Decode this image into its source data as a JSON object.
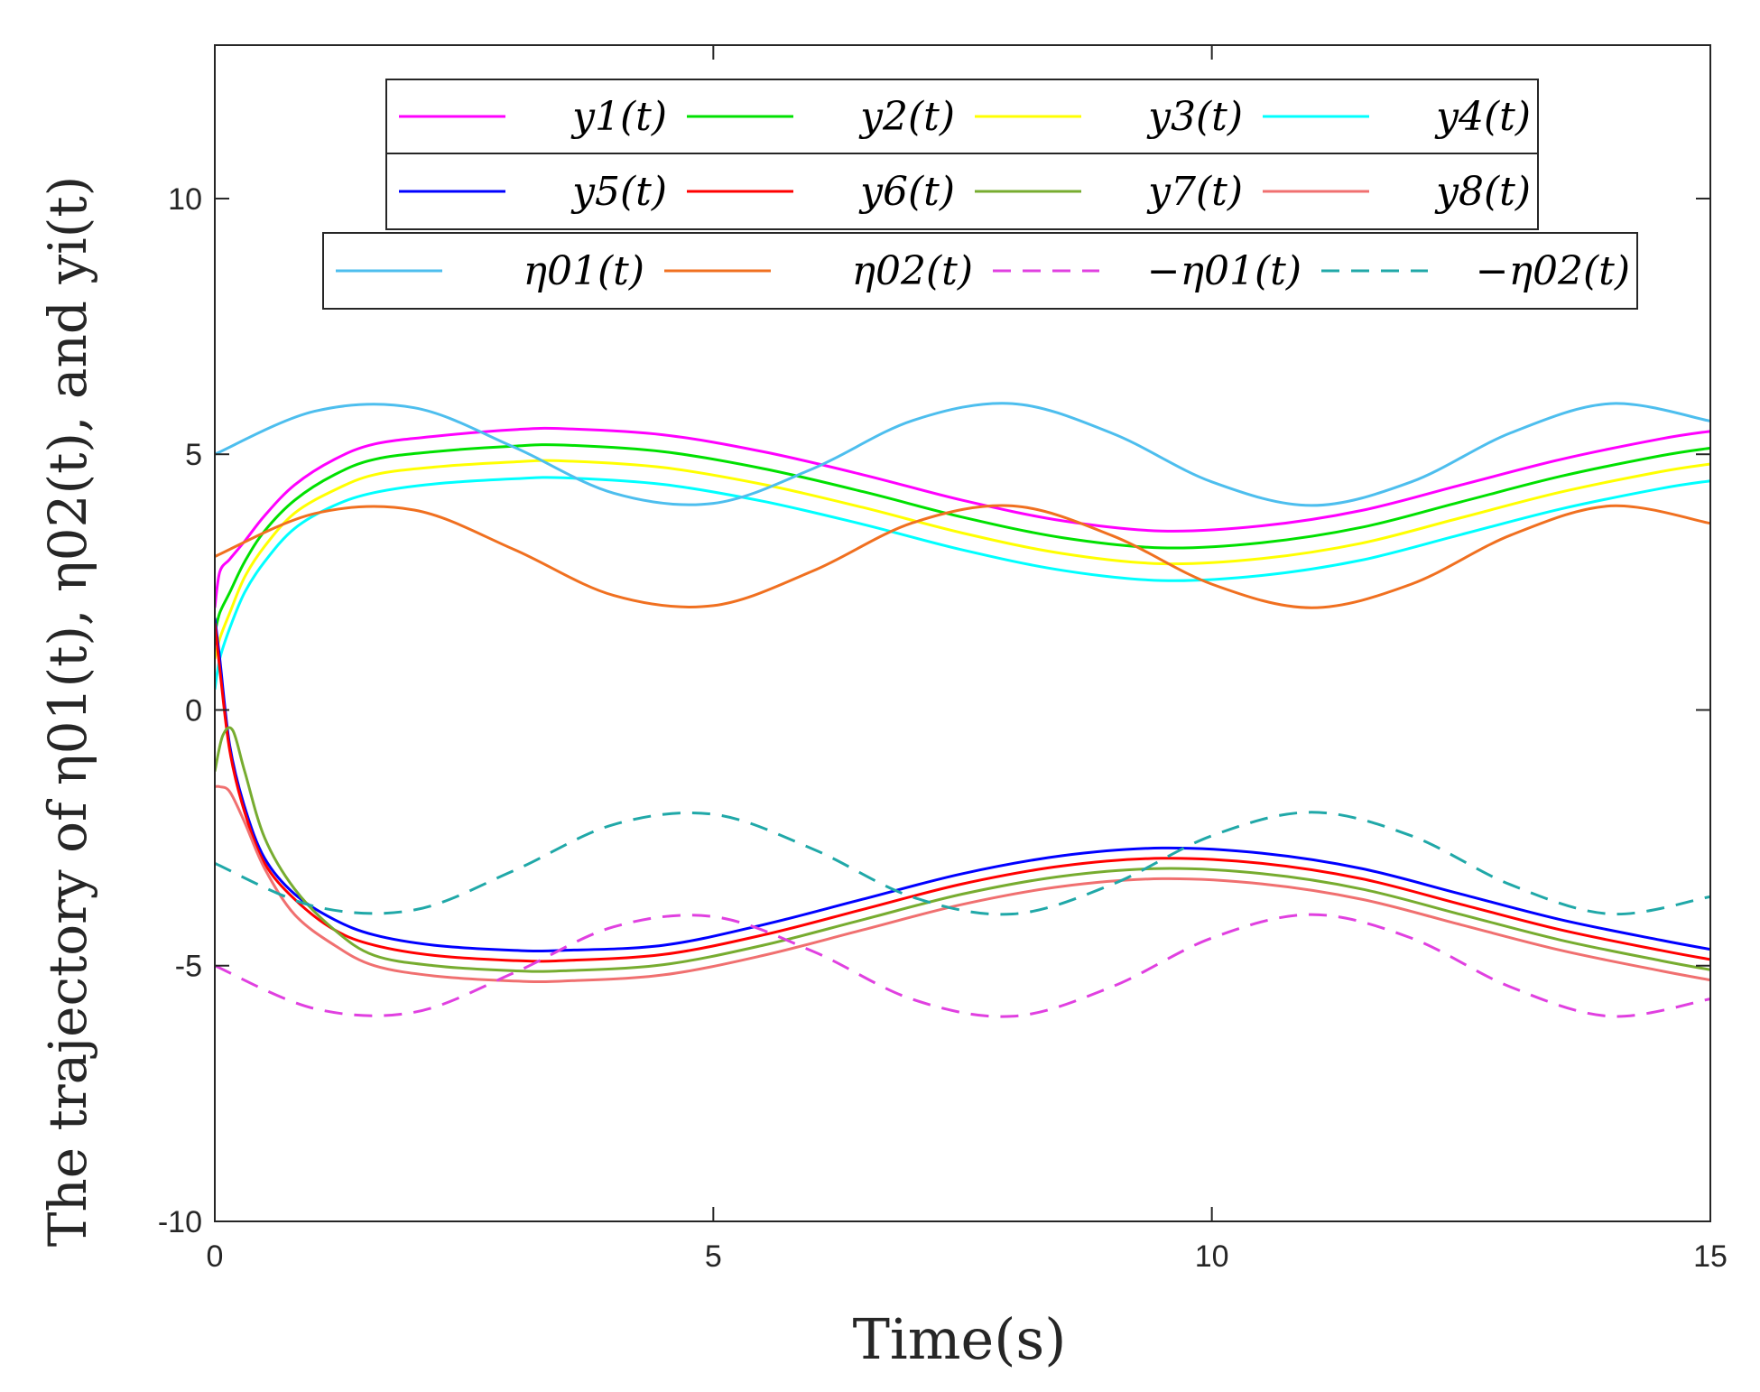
{
  "chart_data": {
    "type": "line",
    "xlabel": "Time(s)",
    "ylabel": "The trajectory of η01(t), η02(t), and yi(t)",
    "xlim": [
      0,
      15
    ],
    "ylim": [
      -10,
      13
    ],
    "xticks": [
      0,
      5,
      10,
      15
    ],
    "xtick_labels": [
      "0",
      "5",
      "10",
      "15"
    ],
    "yticks": [
      -10,
      -5,
      0,
      5,
      10
    ],
    "ytick_labels": [
      "-10",
      "-5",
      "0",
      "5",
      "10"
    ],
    "grid": false,
    "legend_rows": [
      [
        "y1",
        "y2",
        "y3",
        "y4"
      ],
      [
        "y5",
        "y6",
        "y7",
        "y8"
      ],
      [
        "eta01",
        "eta02",
        "neg_eta01",
        "neg_eta02"
      ]
    ],
    "series": [
      {
        "id": "y1",
        "name": "y1(t)",
        "color": "#ff00ff",
        "dash": "solid",
        "x": [
          0,
          0.05,
          0.15,
          0.3,
          0.5,
          0.8,
          1.2,
          1.6,
          2.2,
          3.0,
          3.5,
          4.5,
          5.5,
          6.5,
          7.5,
          8.5,
          9.5,
          10.5,
          11.5,
          12.5,
          13.5,
          14.5,
          15
        ],
        "y": [
          2.0,
          2.7,
          2.95,
          3.3,
          3.8,
          4.4,
          4.9,
          5.2,
          5.35,
          5.48,
          5.5,
          5.38,
          5.05,
          4.6,
          4.1,
          3.7,
          3.5,
          3.6,
          3.9,
          4.4,
          4.9,
          5.3,
          5.45
        ]
      },
      {
        "id": "y2",
        "name": "y2(t)",
        "color": "#00e000",
        "dash": "solid",
        "x": [
          0,
          0.05,
          0.15,
          0.3,
          0.5,
          0.8,
          1.2,
          1.6,
          2.2,
          3.0,
          3.5,
          4.5,
          5.5,
          6.5,
          7.5,
          8.5,
          9.5,
          10.5,
          11.5,
          12.5,
          13.5,
          14.5,
          15
        ],
        "y": [
          1.5,
          1.9,
          2.3,
          2.9,
          3.5,
          4.1,
          4.6,
          4.9,
          5.05,
          5.16,
          5.18,
          5.05,
          4.72,
          4.27,
          3.77,
          3.37,
          3.17,
          3.27,
          3.57,
          4.07,
          4.57,
          4.97,
          5.12
        ]
      },
      {
        "id": "y3",
        "name": "y3(t)",
        "color": "#ffff00",
        "dash": "solid",
        "x": [
          0,
          0.05,
          0.15,
          0.3,
          0.5,
          0.8,
          1.2,
          1.6,
          2.2,
          3.0,
          3.5,
          4.5,
          5.5,
          6.5,
          7.5,
          8.5,
          9.5,
          10.5,
          11.5,
          12.5,
          13.5,
          14.5,
          15
        ],
        "y": [
          1.0,
          1.4,
          1.9,
          2.6,
          3.2,
          3.85,
          4.3,
          4.6,
          4.75,
          4.85,
          4.87,
          4.74,
          4.41,
          3.96,
          3.46,
          3.06,
          2.86,
          2.96,
          3.26,
          3.76,
          4.26,
          4.66,
          4.81
        ]
      },
      {
        "id": "y4",
        "name": "y4(t)",
        "color": "#00ffff",
        "dash": "solid",
        "x": [
          0,
          0.05,
          0.15,
          0.3,
          0.5,
          0.8,
          1.2,
          1.6,
          2.2,
          3.0,
          3.5,
          4.5,
          5.5,
          6.5,
          7.5,
          8.5,
          9.5,
          10.5,
          11.5,
          12.5,
          13.5,
          14.5,
          15
        ],
        "y": [
          0.4,
          1.0,
          1.6,
          2.3,
          2.9,
          3.55,
          4.0,
          4.25,
          4.42,
          4.52,
          4.54,
          4.41,
          4.08,
          3.63,
          3.13,
          2.73,
          2.53,
          2.63,
          2.93,
          3.43,
          3.93,
          4.33,
          4.48
        ]
      },
      {
        "id": "y5",
        "name": "y5(t)",
        "color": "#0000ff",
        "dash": "solid",
        "x": [
          0,
          0.05,
          0.15,
          0.3,
          0.5,
          0.8,
          1.2,
          1.6,
          2.2,
          3.0,
          3.5,
          4.5,
          5.5,
          6.5,
          7.5,
          8.5,
          9.5,
          10.5,
          11.5,
          12.5,
          13.5,
          14.5,
          15
        ],
        "y": [
          1.8,
          1.0,
          -0.7,
          -1.9,
          -2.9,
          -3.6,
          -4.1,
          -4.4,
          -4.6,
          -4.7,
          -4.7,
          -4.6,
          -4.2,
          -3.7,
          -3.2,
          -2.85,
          -2.7,
          -2.8,
          -3.1,
          -3.6,
          -4.1,
          -4.5,
          -4.68
        ]
      },
      {
        "id": "y6",
        "name": "y6(t)",
        "color": "#ff0000",
        "dash": "solid",
        "x": [
          0,
          0.05,
          0.15,
          0.3,
          0.5,
          0.8,
          1.2,
          1.6,
          2.2,
          3.0,
          3.5,
          4.5,
          5.5,
          6.5,
          7.5,
          8.5,
          9.5,
          10.5,
          11.5,
          12.5,
          13.5,
          14.5,
          15
        ],
        "y": [
          1.7,
          0.8,
          -0.8,
          -2.0,
          -3.0,
          -3.7,
          -4.3,
          -4.6,
          -4.8,
          -4.9,
          -4.9,
          -4.78,
          -4.4,
          -3.9,
          -3.4,
          -3.05,
          -2.9,
          -3.0,
          -3.3,
          -3.8,
          -4.3,
          -4.7,
          -4.88
        ]
      },
      {
        "id": "y7",
        "name": "y7(t)",
        "color": "#77ac30",
        "dash": "solid",
        "x": [
          0,
          0.08,
          0.18,
          0.3,
          0.5,
          0.8,
          1.2,
          1.6,
          2.2,
          3.0,
          3.5,
          4.5,
          5.5,
          6.5,
          7.5,
          8.5,
          9.5,
          10.5,
          11.5,
          12.5,
          13.5,
          14.5,
          15
        ],
        "y": [
          -1.2,
          -0.5,
          -0.4,
          -1.2,
          -2.5,
          -3.5,
          -4.3,
          -4.8,
          -5.0,
          -5.1,
          -5.1,
          -4.98,
          -4.6,
          -4.1,
          -3.6,
          -3.25,
          -3.1,
          -3.2,
          -3.5,
          -4.0,
          -4.5,
          -4.9,
          -5.08
        ]
      },
      {
        "id": "y8",
        "name": "y8(t)",
        "color": "#f07070",
        "dash": "solid",
        "x": [
          0,
          0.05,
          0.15,
          0.3,
          0.5,
          0.8,
          1.2,
          1.6,
          2.2,
          3.0,
          3.5,
          4.5,
          5.5,
          6.5,
          7.5,
          8.5,
          9.5,
          10.5,
          11.5,
          12.5,
          13.5,
          14.5,
          15
        ],
        "y": [
          -1.5,
          -1.5,
          -1.6,
          -2.2,
          -3.1,
          -4.0,
          -4.6,
          -5.0,
          -5.2,
          -5.3,
          -5.3,
          -5.18,
          -4.8,
          -4.3,
          -3.8,
          -3.45,
          -3.3,
          -3.4,
          -3.7,
          -4.2,
          -4.7,
          -5.1,
          -5.28
        ]
      },
      {
        "id": "eta01",
        "name": "η01(t)",
        "color": "#4dbeee",
        "dash": "solid",
        "x": [
          0,
          1,
          2,
          3,
          4,
          5,
          6,
          7,
          8,
          9,
          10,
          11,
          12,
          13,
          14,
          15
        ],
        "y": [
          5.0,
          5.84,
          5.91,
          5.14,
          4.24,
          4.04,
          4.72,
          5.66,
          5.99,
          5.41,
          4.46,
          4.0,
          4.46,
          5.42,
          5.99,
          5.65
        ]
      },
      {
        "id": "eta02",
        "name": "η02(t)",
        "color": "#f07020",
        "dash": "solid",
        "x": [
          0,
          1,
          2,
          3,
          4,
          5,
          6,
          7,
          8,
          9,
          10,
          11,
          12,
          13,
          14,
          15
        ],
        "y": [
          3.0,
          3.84,
          3.91,
          3.14,
          2.24,
          2.04,
          2.72,
          3.66,
          3.99,
          3.41,
          2.46,
          2.0,
          2.46,
          3.42,
          3.99,
          3.65
        ]
      },
      {
        "id": "neg_eta01",
        "name": "−η01(t)",
        "color": "#e040e0",
        "dash": "dashed",
        "x": [
          0,
          1,
          2,
          3,
          4,
          5,
          6,
          7,
          8,
          9,
          10,
          11,
          12,
          13,
          14,
          15
        ],
        "y": [
          -5.0,
          -5.84,
          -5.91,
          -5.14,
          -4.24,
          -4.04,
          -4.72,
          -5.66,
          -5.99,
          -5.41,
          -4.46,
          -4.0,
          -4.46,
          -5.42,
          -5.99,
          -5.65
        ]
      },
      {
        "id": "neg_eta02",
        "name": "−η02(t)",
        "color": "#20a8a8",
        "dash": "dashed",
        "x": [
          0,
          1,
          2,
          3,
          4,
          5,
          6,
          7,
          8,
          9,
          10,
          11,
          12,
          13,
          14,
          15
        ],
        "y": [
          -3.0,
          -3.84,
          -3.91,
          -3.14,
          -2.24,
          -2.04,
          -2.72,
          -3.66,
          -3.99,
          -3.41,
          -2.46,
          -2.0,
          -2.46,
          -3.42,
          -3.99,
          -3.65
        ]
      }
    ]
  }
}
